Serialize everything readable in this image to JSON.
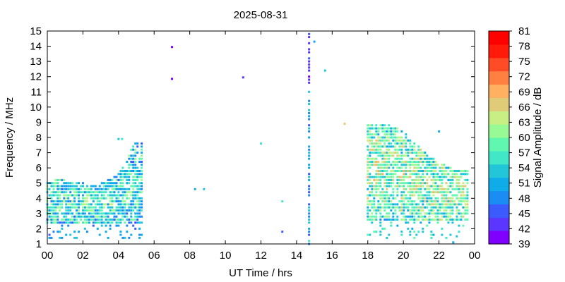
{
  "chart_data": {
    "type": "scatter",
    "title": "2025-08-31",
    "xlabel": "UT Time / hrs",
    "ylabel": "Frequency / MHz",
    "xlim": [
      0,
      24
    ],
    "ylim": [
      1,
      15
    ],
    "x_ticks": [
      "00",
      "02",
      "04",
      "06",
      "08",
      "10",
      "12",
      "14",
      "16",
      "18",
      "20",
      "22",
      "00"
    ],
    "y_ticks": [
      "1",
      "2",
      "3",
      "4",
      "5",
      "6",
      "7",
      "8",
      "9",
      "10",
      "11",
      "12",
      "13",
      "14",
      "15"
    ],
    "grid": false,
    "colorbar": {
      "label": "Signal Amplitude / dB",
      "range": [
        39,
        81
      ],
      "ticks": [
        "39",
        "42",
        "45",
        "48",
        "51",
        "54",
        "57",
        "60",
        "63",
        "66",
        "69",
        "72",
        "75",
        "78",
        "81"
      ],
      "colors": [
        "#7f00ff",
        "#5a36ff",
        "#3b5bff",
        "#1c8cf5",
        "#10acea",
        "#22c6d8",
        "#40e8c8",
        "#60f7b0",
        "#98fa94",
        "#c8ef84",
        "#e0cc78",
        "#ffb060",
        "#ff8040",
        "#ff4c26",
        "#ff1a0a",
        "#ff0000"
      ]
    },
    "point_groups": [
      {
        "name": "night-band",
        "t_start": 0.0,
        "t_end": 5.3,
        "cols": 46,
        "f_upper": [
          5.2,
          5.2,
          5.3,
          5.2,
          5.1,
          5.1,
          5.0,
          5.0,
          5.0,
          5.1,
          5.3,
          5.5,
          6.2,
          7.0,
          7.8,
          7.8
        ],
        "f_lower": 2.4,
        "amp_mean": 56,
        "amp_spread": 8
      },
      {
        "name": "day-band",
        "t_start": 18.0,
        "t_end": 23.6,
        "cols": 48,
        "f_upper": [
          8.9,
          8.9,
          8.9,
          8.8,
          8.6,
          8.2,
          7.8,
          7.2,
          6.8,
          6.5,
          6.2,
          6.0,
          6.0,
          6.0
        ],
        "f_lower": 2.6,
        "amp_mean": 61,
        "amp_spread": 8
      },
      {
        "name": "vertical-spike",
        "t": 14.7,
        "f_min": 1.0,
        "f_max": 14.8,
        "amp_mean": 50
      }
    ],
    "isolated_points": [
      {
        "t": 7.0,
        "f": 13.95,
        "amp": 41
      },
      {
        "t": 7.0,
        "f": 11.85,
        "amp": 41
      },
      {
        "t": 11.0,
        "f": 11.95,
        "amp": 43
      },
      {
        "t": 12.0,
        "f": 7.6,
        "amp": 57
      },
      {
        "t": 8.3,
        "f": 4.6,
        "amp": 52
      },
      {
        "t": 8.8,
        "f": 4.6,
        "amp": 54
      },
      {
        "t": 13.2,
        "f": 3.8,
        "amp": 57
      },
      {
        "t": 13.2,
        "f": 1.8,
        "amp": 45
      },
      {
        "t": 15.0,
        "f": 14.3,
        "amp": 51
      },
      {
        "t": 15.6,
        "f": 12.4,
        "amp": 54
      },
      {
        "t": 16.7,
        "f": 8.9,
        "amp": 66
      },
      {
        "t": 4.0,
        "f": 7.9,
        "amp": 53
      },
      {
        "t": 4.2,
        "f": 7.9,
        "amp": 55
      },
      {
        "t": 22.0,
        "f": 8.4,
        "amp": 50
      },
      {
        "t": 22.8,
        "f": 1.1,
        "amp": 52
      },
      {
        "t": 23.0,
        "f": 1.5,
        "amp": 54
      }
    ]
  }
}
